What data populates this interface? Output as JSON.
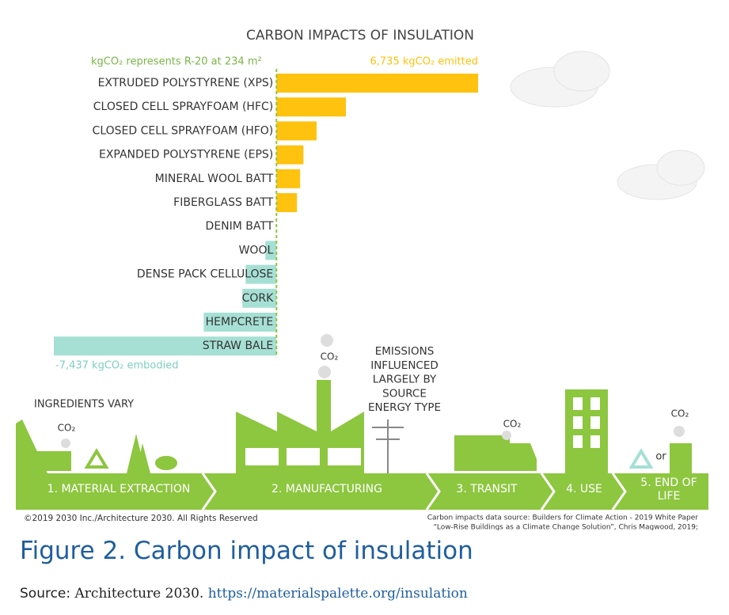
{
  "chart_data": {
    "type": "bar",
    "orientation": "horizontal",
    "title": "CARBON IMPACTS OF INSULATION",
    "annotation": "kgCO₂ represents R-20 at 234 m²",
    "categories": [
      "EXTRUDED POLYSTYRENE (XPS)",
      "CLOSED CELL SPRAYFOAM (HFC)",
      "CLOSED CELL SPRAYFOAM (HFO)",
      "EXPANDED POLYSTYRENE (EPS)",
      "MINERAL WOOL BATT",
      "FIBERGLASS BATT",
      "DENIM BATT",
      "WOOL",
      "DENSE PACK CELLULOSE",
      "CORK",
      "HEMPCRETE",
      "STRAW BALE"
    ],
    "values": [
      6735,
      2320,
      1340,
      900,
      790,
      685,
      0,
      -370,
      -1030,
      -1140,
      -2430,
      -7437
    ],
    "value_labels": [
      "6,735 kgCO₂ emitted",
      null,
      null,
      null,
      null,
      null,
      null,
      null,
      null,
      null,
      null,
      "-7,437 kgCO₂ embodied"
    ],
    "xlim": [
      -7437,
      6735
    ],
    "positive_color": "#ffc20e",
    "negative_color": "#a6e0d4",
    "zero_line_color": "#8dc63f"
  },
  "infographic": {
    "ingredients_note": "INGREDIENTS VARY",
    "co2": "CO₂",
    "emissions_note": [
      "EMISSIONS",
      "INFLUENCED",
      "LARGELY BY",
      "SOURCE",
      "ENERGY TYPE"
    ],
    "or": "or",
    "stages": [
      [
        "1. MATERIAL EXTRACTION"
      ],
      [
        "2. MANUFACTURING"
      ],
      [
        "3. TRANSIT"
      ],
      [
        "4. USE"
      ],
      [
        "5. END OF",
        "LIFE"
      ]
    ],
    "copyright": "©2019 2030 Inc./Architecture 2030. All Rights Reserved",
    "data_source": [
      "Carbon impacts data source: Builders for Climate Action - 2019 White Paper",
      "“Low-Rise Buildings as a Climate Change Solution”, Chris Magwood, 2019;"
    ]
  },
  "figure": {
    "caption": "Figure 2. Carbon impact of insulation",
    "source_prefix": "Source:",
    "source_name": "Architecture 2030.",
    "source_url": "https://materialspalette.org/insulation"
  }
}
